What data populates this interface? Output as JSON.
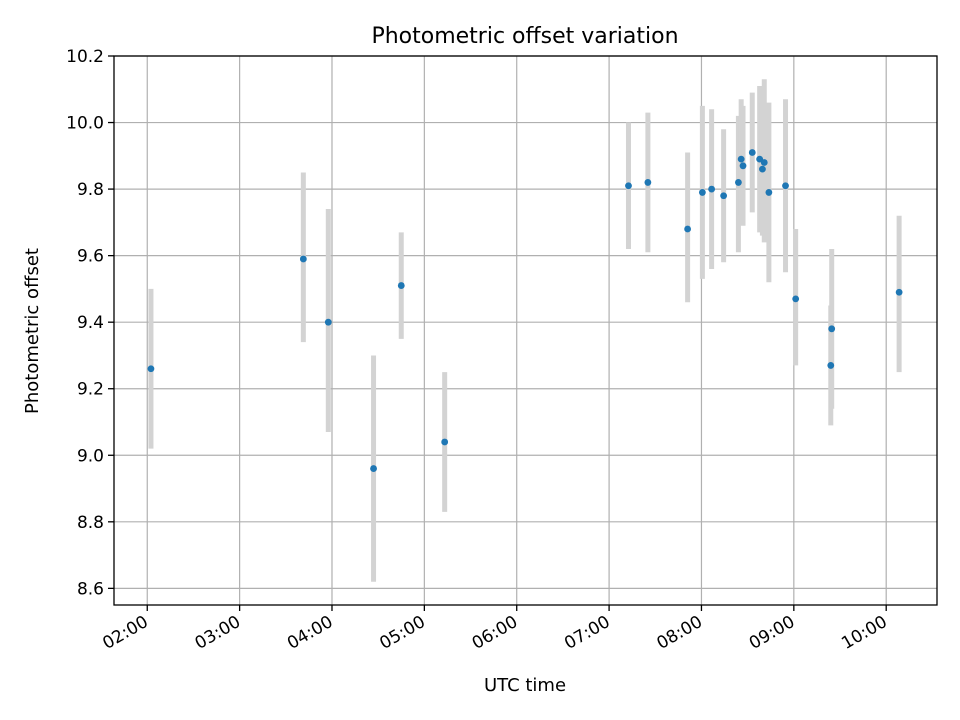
{
  "chart_data": {
    "type": "scatter",
    "title": "Photometric offset variation",
    "xlabel": "UTC time",
    "ylabel": "Photometric offset",
    "xlim_hours": [
      1.64,
      10.55
    ],
    "ylim": [
      8.55,
      10.2
    ],
    "grid": true,
    "x_ticks": [
      {
        "hour": 2,
        "label": "02:00"
      },
      {
        "hour": 3,
        "label": "03:00"
      },
      {
        "hour": 4,
        "label": "04:00"
      },
      {
        "hour": 5,
        "label": "05:00"
      },
      {
        "hour": 6,
        "label": "06:00"
      },
      {
        "hour": 7,
        "label": "07:00"
      },
      {
        "hour": 8,
        "label": "08:00"
      },
      {
        "hour": 9,
        "label": "09:00"
      },
      {
        "hour": 10,
        "label": "10:00"
      }
    ],
    "y_ticks": [
      {
        "value": 8.6,
        "label": "8.6"
      },
      {
        "value": 8.8,
        "label": "8.8"
      },
      {
        "value": 9.0,
        "label": "9.0"
      },
      {
        "value": 9.2,
        "label": "9.2"
      },
      {
        "value": 9.4,
        "label": "9.4"
      },
      {
        "value": 9.6,
        "label": "9.6"
      },
      {
        "value": 9.8,
        "label": "9.8"
      },
      {
        "value": 10.0,
        "label": "10.0"
      },
      {
        "value": 10.2,
        "label": "10.2"
      }
    ],
    "points": [
      {
        "time": "02:02",
        "hour": 2.04,
        "value": 9.26,
        "err_low": 9.02,
        "err_high": 9.5
      },
      {
        "time": "03:41",
        "hour": 3.69,
        "value": 9.59,
        "err_low": 9.34,
        "err_high": 9.85
      },
      {
        "time": "03:58",
        "hour": 3.96,
        "value": 9.4,
        "err_low": 9.07,
        "err_high": 9.74
      },
      {
        "time": "04:27",
        "hour": 4.45,
        "value": 8.96,
        "err_low": 8.62,
        "err_high": 9.3
      },
      {
        "time": "04:45",
        "hour": 4.75,
        "value": 9.51,
        "err_low": 9.35,
        "err_high": 9.67
      },
      {
        "time": "05:13",
        "hour": 5.22,
        "value": 9.04,
        "err_low": 8.83,
        "err_high": 9.25
      },
      {
        "time": "07:12",
        "hour": 7.21,
        "value": 9.81,
        "err_low": 9.62,
        "err_high": 10.0
      },
      {
        "time": "07:25",
        "hour": 7.42,
        "value": 9.82,
        "err_low": 9.61,
        "err_high": 10.03
      },
      {
        "time": "07:51",
        "hour": 7.85,
        "value": 9.68,
        "err_low": 9.46,
        "err_high": 9.91
      },
      {
        "time": "08:01",
        "hour": 8.01,
        "value": 9.79,
        "err_low": 9.53,
        "err_high": 10.05
      },
      {
        "time": "08:06",
        "hour": 8.11,
        "value": 9.8,
        "err_low": 9.56,
        "err_high": 10.04
      },
      {
        "time": "08:14",
        "hour": 8.24,
        "value": 9.78,
        "err_low": 9.58,
        "err_high": 9.98
      },
      {
        "time": "08:24",
        "hour": 8.4,
        "value": 9.82,
        "err_low": 9.61,
        "err_high": 10.02
      },
      {
        "time": "08:26",
        "hour": 8.43,
        "value": 9.89,
        "err_low": 9.72,
        "err_high": 10.07
      },
      {
        "time": "08:27",
        "hour": 8.45,
        "value": 9.87,
        "err_low": 9.69,
        "err_high": 10.05
      },
      {
        "time": "08:33",
        "hour": 8.55,
        "value": 9.91,
        "err_low": 9.73,
        "err_high": 10.09
      },
      {
        "time": "08:38",
        "hour": 8.63,
        "value": 9.89,
        "err_low": 9.67,
        "err_high": 10.11
      },
      {
        "time": "08:40",
        "hour": 8.66,
        "value": 9.86,
        "err_low": 9.66,
        "err_high": 10.06
      },
      {
        "time": "08:41",
        "hour": 8.68,
        "value": 9.88,
        "err_low": 9.64,
        "err_high": 10.13
      },
      {
        "time": "08:44",
        "hour": 8.73,
        "value": 9.79,
        "err_low": 9.52,
        "err_high": 10.06
      },
      {
        "time": "08:55",
        "hour": 8.91,
        "value": 9.81,
        "err_low": 9.55,
        "err_high": 10.07
      },
      {
        "time": "09:01",
        "hour": 9.02,
        "value": 9.47,
        "err_low": 9.27,
        "err_high": 9.68
      },
      {
        "time": "09:24",
        "hour": 9.4,
        "value": 9.27,
        "err_low": 9.09,
        "err_high": 9.45
      },
      {
        "time": "09:25",
        "hour": 9.41,
        "value": 9.38,
        "err_low": 9.14,
        "err_high": 9.62
      },
      {
        "time": "10:08",
        "hour": 10.14,
        "value": 9.49,
        "err_low": 9.25,
        "err_high": 9.72
      }
    ]
  }
}
